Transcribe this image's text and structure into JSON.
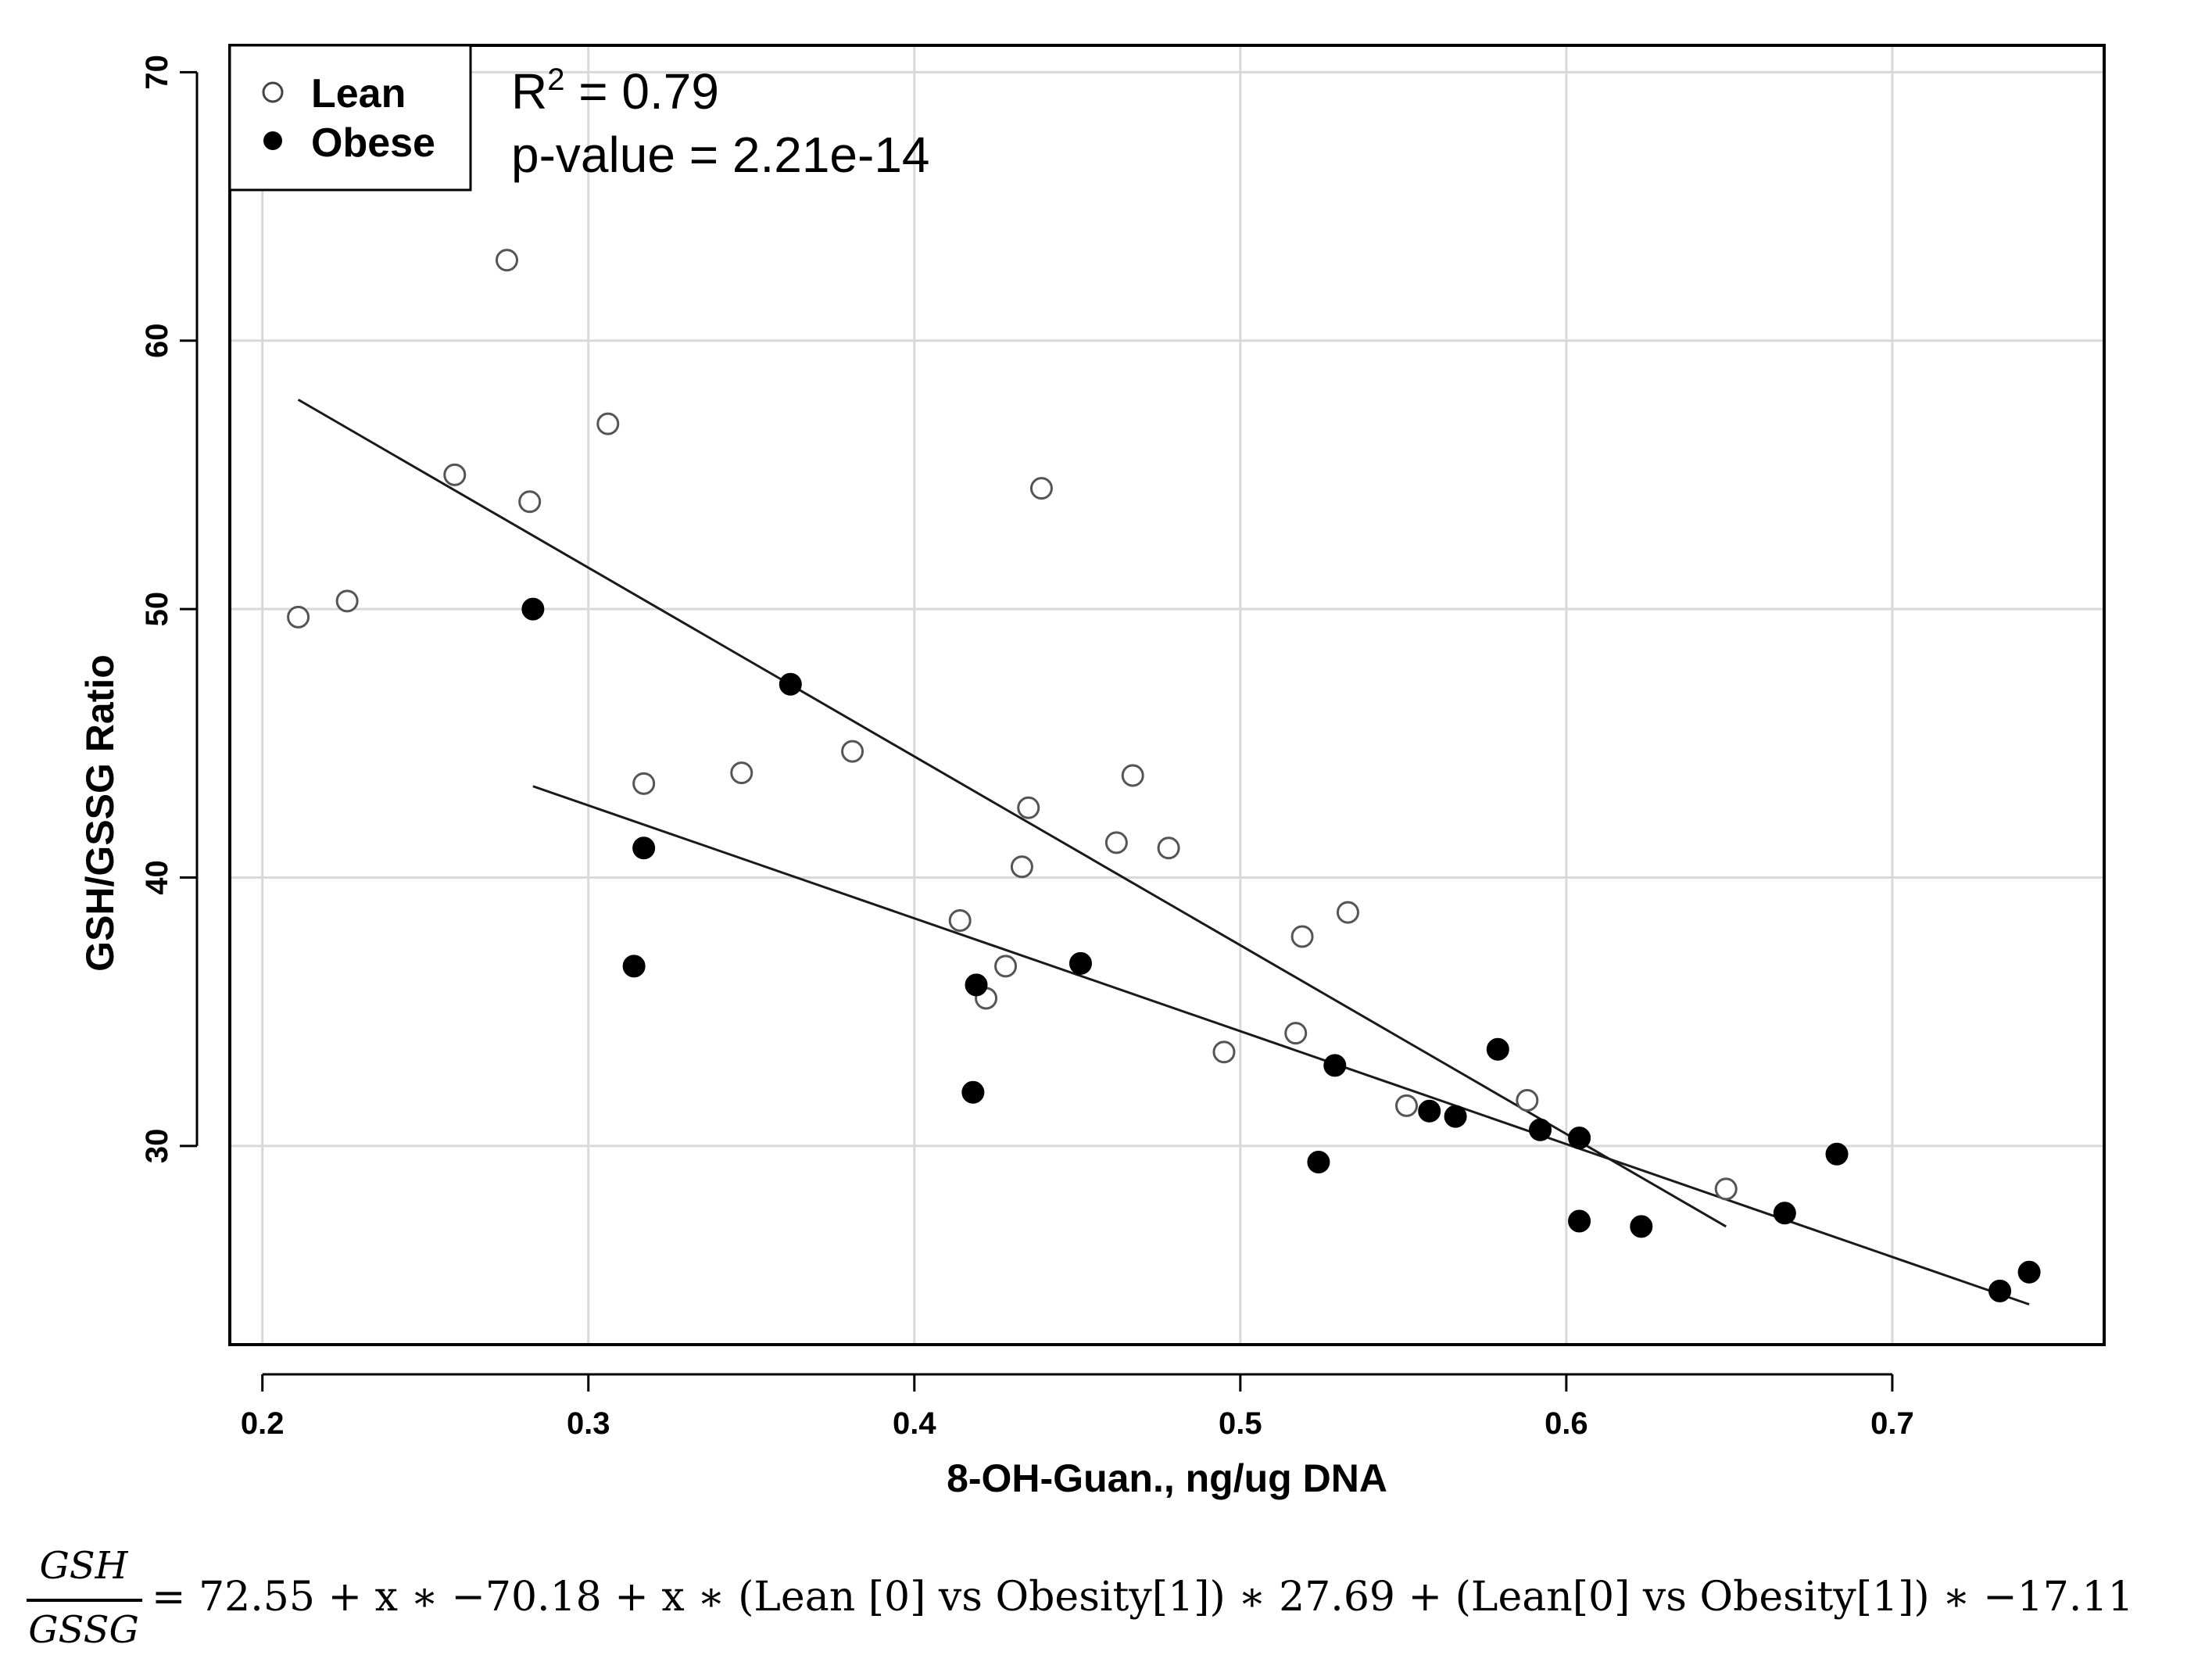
{
  "chart_data": {
    "type": "scatter",
    "title": "",
    "xlabel": "8-OH-Guan., ng/ug DNA",
    "ylabel": "GSH/GSSG Ratio",
    "xlim": [
      0.19,
      0.765
    ],
    "ylim": [
      22.6,
      71.0
    ],
    "x_ticks": [
      0.2,
      0.3,
      0.4,
      0.5,
      0.6,
      0.7
    ],
    "x_tick_labels": [
      "0.2",
      "0.3",
      "0.4",
      "0.5",
      "0.6",
      "0.7"
    ],
    "y_ticks": [
      30,
      40,
      50,
      60,
      70
    ],
    "y_tick_labels": [
      "30",
      "40",
      "50",
      "60",
      "70"
    ],
    "grid": true,
    "legend": {
      "position": "top-left",
      "entries": [
        {
          "label": "Lean",
          "marker": "open-circle"
        },
        {
          "label": "Obese",
          "marker": "filled-circle"
        }
      ]
    },
    "annotations": {
      "r2_prefix": "R",
      "r2_sup": "2",
      "r2_value": " = 0.79",
      "p_value": "p-value = 2.21e-14"
    },
    "series": [
      {
        "name": "Lean",
        "marker": "open-circle",
        "points": [
          [
            0.211,
            49.7
          ],
          [
            0.226,
            50.3
          ],
          [
            0.259,
            55.0
          ],
          [
            0.275,
            63.0
          ],
          [
            0.282,
            54.0
          ],
          [
            0.306,
            56.9
          ],
          [
            0.317,
            43.5
          ],
          [
            0.347,
            43.9
          ],
          [
            0.381,
            44.7
          ],
          [
            0.414,
            38.4
          ],
          [
            0.422,
            35.5
          ],
          [
            0.428,
            36.7
          ],
          [
            0.433,
            40.4
          ],
          [
            0.435,
            42.6
          ],
          [
            0.439,
            54.5
          ],
          [
            0.462,
            41.3
          ],
          [
            0.467,
            43.8
          ],
          [
            0.478,
            41.1
          ],
          [
            0.495,
            33.5
          ],
          [
            0.517,
            34.2
          ],
          [
            0.519,
            37.8
          ],
          [
            0.533,
            38.7
          ],
          [
            0.551,
            31.5
          ],
          [
            0.588,
            31.7
          ],
          [
            0.649,
            28.4
          ]
        ]
      },
      {
        "name": "Obese",
        "marker": "filled-circle",
        "points": [
          [
            0.283,
            50.0
          ],
          [
            0.314,
            36.7
          ],
          [
            0.317,
            41.1
          ],
          [
            0.362,
            47.2
          ],
          [
            0.418,
            32.0
          ],
          [
            0.419,
            36.0
          ],
          [
            0.451,
            36.8
          ],
          [
            0.524,
            29.4
          ],
          [
            0.529,
            33.0
          ],
          [
            0.558,
            31.3
          ],
          [
            0.566,
            31.1
          ],
          [
            0.579,
            33.6
          ],
          [
            0.592,
            30.6
          ],
          [
            0.604,
            27.2
          ],
          [
            0.604,
            30.3
          ],
          [
            0.623,
            27.0
          ],
          [
            0.667,
            27.5
          ],
          [
            0.683,
            29.7
          ],
          [
            0.733,
            24.6
          ],
          [
            0.742,
            25.3
          ]
        ]
      }
    ],
    "fit_lines": [
      {
        "name": "Lean",
        "x": [
          0.211,
          0.649
        ],
        "y": [
          57.8,
          27.0
        ]
      },
      {
        "name": "Obese",
        "x": [
          0.283,
          0.742
        ],
        "y": [
          43.4,
          24.1
        ]
      }
    ]
  },
  "equation": {
    "lhs_numerator": "GSH",
    "lhs_denominator": "GSSG",
    "rhs": "= 72.55 + x ∗ −70.18 + x ∗  (Lean [0] vs Obesity[1]) ∗ 27.69 + (Lean[0] vs Obesity[1]) ∗ −17.11"
  }
}
